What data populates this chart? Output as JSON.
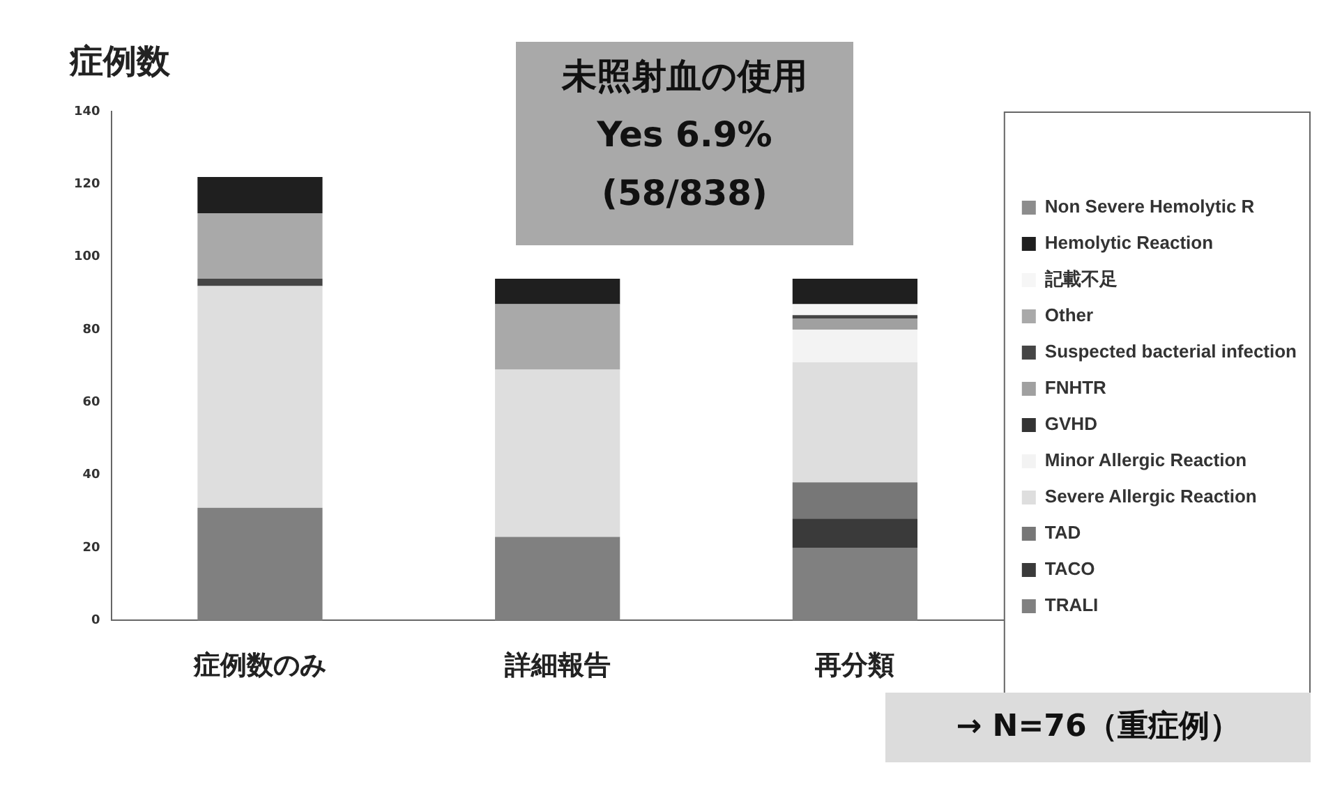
{
  "chart_data": {
    "type": "bar",
    "stacked": true,
    "ylabel": "症例数",
    "categories": [
      "症例数のみ",
      "詳細報告",
      "再分類"
    ],
    "ylim": [
      0,
      140
    ],
    "yticks": [
      0,
      20,
      40,
      60,
      80,
      100,
      120,
      140
    ],
    "legend": "right",
    "annotations": [
      "未照射血の使用\nYes 6.9%\n(58/838)",
      "→  N=76（重症例）"
    ],
    "series": [
      {
        "name": "TRALI",
        "color": "#808080",
        "values": [
          31,
          23,
          20
        ]
      },
      {
        "name": "TACO",
        "color": "#3a3a3a",
        "values": [
          0,
          0,
          8
        ]
      },
      {
        "name": "TAD",
        "color": "#777777",
        "values": [
          0,
          0,
          10
        ]
      },
      {
        "name": "Severe Allergic Reaction",
        "color": "#dedede",
        "values": [
          61,
          46,
          33
        ]
      },
      {
        "name": "Minor Allergic Reaction",
        "color": "#f3f3f3",
        "values": [
          0,
          0,
          9
        ]
      },
      {
        "name": "GVHD",
        "color": "#333333",
        "values": [
          0,
          0,
          0
        ]
      },
      {
        "name": "FNHTR",
        "color": "#a0a0a0",
        "values": [
          0,
          0,
          3
        ]
      },
      {
        "name": "Suspected bacterial infection",
        "color": "#454545",
        "values": [
          2,
          0,
          1
        ]
      },
      {
        "name": "Other",
        "color": "#a9a9a9",
        "values": [
          18,
          18,
          0
        ]
      },
      {
        "name": "記載不足",
        "color": "#f6f6f6",
        "values": [
          0,
          0,
          3
        ]
      },
      {
        "name": "Hemolytic Reaction",
        "color": "#1f1f1f",
        "values": [
          10,
          7,
          7
        ]
      },
      {
        "name": "Non Severe Hemolytic R",
        "color": "#8c8c8c",
        "values": [
          0,
          0,
          0
        ]
      }
    ]
  }
}
